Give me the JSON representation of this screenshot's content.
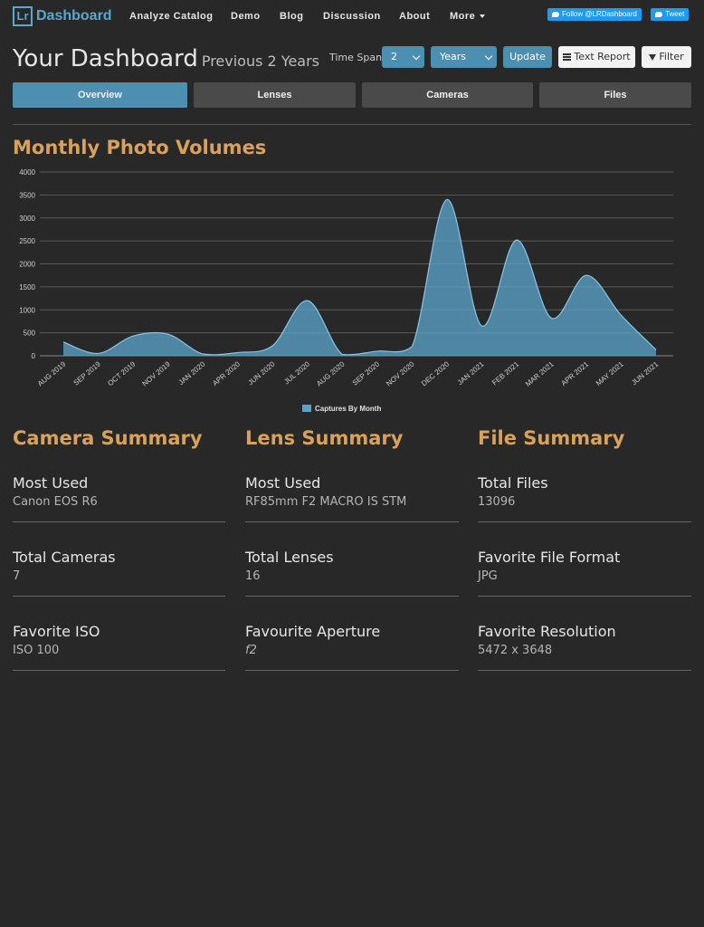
{
  "navbar": {
    "brand_logo": "Lr",
    "brand_text": "Dashboard",
    "items": [
      "Analyze Catalog",
      "Demo",
      "Blog",
      "Discussion",
      "About",
      "More"
    ],
    "follow_label": "Follow @LRDashboard",
    "tweet_label": "Tweet"
  },
  "header": {
    "title": "Your Dashboard",
    "subtitle": "Previous 2 Years",
    "time_span_label": "Time Span",
    "span_value": "2",
    "unit_value": "Years",
    "update_label": "Update",
    "text_report_label": "Text Report",
    "filter_label": "Filter"
  },
  "tabs": [
    {
      "label": "Overview",
      "active": true
    },
    {
      "label": "Lenses",
      "active": false
    },
    {
      "label": "Cameras",
      "active": false
    },
    {
      "label": "Files",
      "active": false
    }
  ],
  "chart_title": "Monthly Photo Volumes",
  "chart_data": {
    "type": "area",
    "title": "Monthly Photo Volumes",
    "categories": [
      "AUG 2019",
      "SEP 2019",
      "OCT 2019",
      "NOV 2019",
      "JAN 2020",
      "APR 2020",
      "JUN 2020",
      "JUL 2020",
      "AUG 2020",
      "SEP 2020",
      "NOV 2020",
      "DEC 2020",
      "JAN 2021",
      "FEB 2021",
      "MAR 2021",
      "APR 2021",
      "MAY 2021",
      "JUN 2021"
    ],
    "series": [
      {
        "name": "Captures By Month",
        "values": [
          300,
          50,
          430,
          470,
          40,
          70,
          220,
          1200,
          30,
          100,
          200,
          3400,
          650,
          2520,
          820,
          1750,
          880,
          130
        ]
      }
    ],
    "ylim": [
      0,
      4000
    ],
    "yticks": [
      0,
      500,
      1000,
      1500,
      2000,
      2500,
      3000,
      3500,
      4000
    ],
    "grid": true,
    "legend": "bottom",
    "color": "#5aa2c8"
  },
  "summaries": [
    {
      "title": "Camera Summary",
      "items": [
        {
          "label": "Most Used",
          "value": "Canon EOS R6"
        },
        {
          "label": "Total Cameras",
          "value": "7"
        },
        {
          "label": "Favorite ISO",
          "value": "ISO 100"
        }
      ]
    },
    {
      "title": "Lens Summary",
      "items": [
        {
          "label": "Most Used",
          "value": "RF85mm F2 MACRO IS STM"
        },
        {
          "label": "Total Lenses",
          "value": "16"
        },
        {
          "label": "Favourite Aperture",
          "value": "f2"
        }
      ]
    },
    {
      "title": "File Summary",
      "items": [
        {
          "label": "Total Files",
          "value": "13096"
        },
        {
          "label": "Favorite File Format",
          "value": "JPG"
        },
        {
          "label": "Favorite Resolution",
          "value": "5472 x 3648"
        }
      ]
    }
  ]
}
